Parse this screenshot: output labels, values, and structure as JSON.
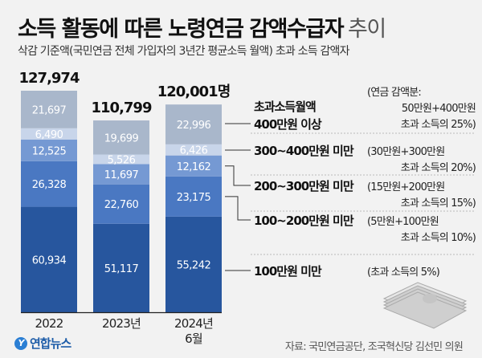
{
  "header": {
    "title_bold": "소득 활동에 따른 노령연금 감액수급자",
    "title_light": "추이",
    "subtitle": "삭감 기준액(국민연금 전체 가입자의 3년간 평균소득 월액) 초과 소득 감액자"
  },
  "footer": {
    "source": "자료: 국민연금공단, 조국혁신당 김선민 의원",
    "logo": "연합뉴스"
  },
  "chart_data": {
    "type": "bar",
    "stacked": true,
    "categories": [
      "2022",
      "2023년",
      "2024년 6월"
    ],
    "totals": [
      "127,974",
      "110,799",
      "120,001명"
    ],
    "series": [
      {
        "name": "100만원 미만",
        "note": "(초과 소득의 5%)",
        "values": [
          60934,
          51117,
          55242
        ],
        "color": "#27569e"
      },
      {
        "name": "100~200만원 미만",
        "note": "(5만원+100만원 초과 소득의 10%)",
        "values": [
          26328,
          22760,
          23175
        ],
        "color": "#4a78c2"
      },
      {
        "name": "200~300만원 미만",
        "note": "(15만원+200만원 초과 소득의 15%)",
        "values": [
          12525,
          11697,
          12162
        ],
        "color": "#7599d3"
      },
      {
        "name": "300~400만원 미만",
        "note": "(30만원+300만원 초과 소득의 20%)",
        "values": [
          6490,
          5526,
          6426
        ],
        "color": "#c8d5ea"
      },
      {
        "name": "초과소득월액 400만원 이상",
        "note": "(연금 감액분: 50만원+400만원 초과 소득의 25%)",
        "values": [
          21697,
          19699,
          22996
        ],
        "color": "#a9b7cb"
      }
    ]
  }
}
